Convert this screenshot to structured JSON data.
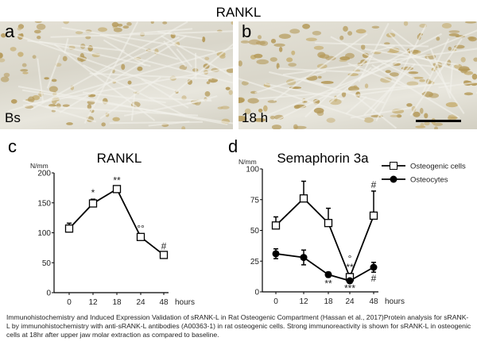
{
  "figure_title": "RANKL",
  "panels": {
    "a": {
      "label": "a",
      "sublabel": "Bs"
    },
    "b": {
      "label": "b",
      "sublabel": "18 h"
    },
    "c": {
      "label": "c"
    },
    "d": {
      "label": "d"
    }
  },
  "caption": "Immunohistochemistry and Induced Expression Validation of sRANK-L in Rat Osteogenic Compartment (Hassan et al., 2017)Protein analysis for sRANK-L by immunohistochemistry with anti-sRANK-L antibodies (A00363-1) in rat osteogenic cells. Strong immunoreactivity is shown for sRANK-L in osteogenic cells at 18hr after upper jaw molar extraction as compared to baseline.",
  "chart_data": [
    {
      "type": "line",
      "title": "RANKL",
      "ylabel": "N/mm",
      "xlabel": "hours",
      "categories": [
        "0",
        "12",
        "18",
        "24",
        "48"
      ],
      "yticks": [
        "0",
        "50",
        "100",
        "150",
        "200"
      ],
      "ylim": [
        0,
        200
      ],
      "series": [
        {
          "name": "RANKL",
          "marker": "open-square",
          "values": [
            107,
            149,
            173,
            93,
            63
          ],
          "errors": [
            9,
            7,
            4,
            4,
            4
          ],
          "annotations": [
            "",
            "*",
            "**",
            "°°",
            "#"
          ]
        }
      ]
    },
    {
      "type": "line",
      "title": "Semaphorin 3a",
      "ylabel": "N/mm",
      "xlabel": "hours",
      "categories": [
        "0",
        "12",
        "18",
        "24",
        "48"
      ],
      "yticks": [
        "0",
        "25",
        "50",
        "75",
        "100"
      ],
      "ylim": [
        0,
        100
      ],
      "legend": "top-right",
      "series": [
        {
          "name": "Osteogenic cells",
          "marker": "open-square",
          "values": [
            54,
            76,
            56,
            12,
            62
          ],
          "errors": [
            7,
            14,
            12,
            3,
            20
          ],
          "annotations": [
            "",
            "",
            "",
            "°\n**",
            "#"
          ]
        },
        {
          "name": "Osteocytes",
          "marker": "filled-circle",
          "values": [
            31,
            28,
            14,
            9,
            20
          ],
          "errors": [
            4,
            6,
            2,
            1,
            4
          ],
          "annotations": [
            "",
            "",
            "**",
            "***",
            "#"
          ]
        }
      ]
    }
  ]
}
